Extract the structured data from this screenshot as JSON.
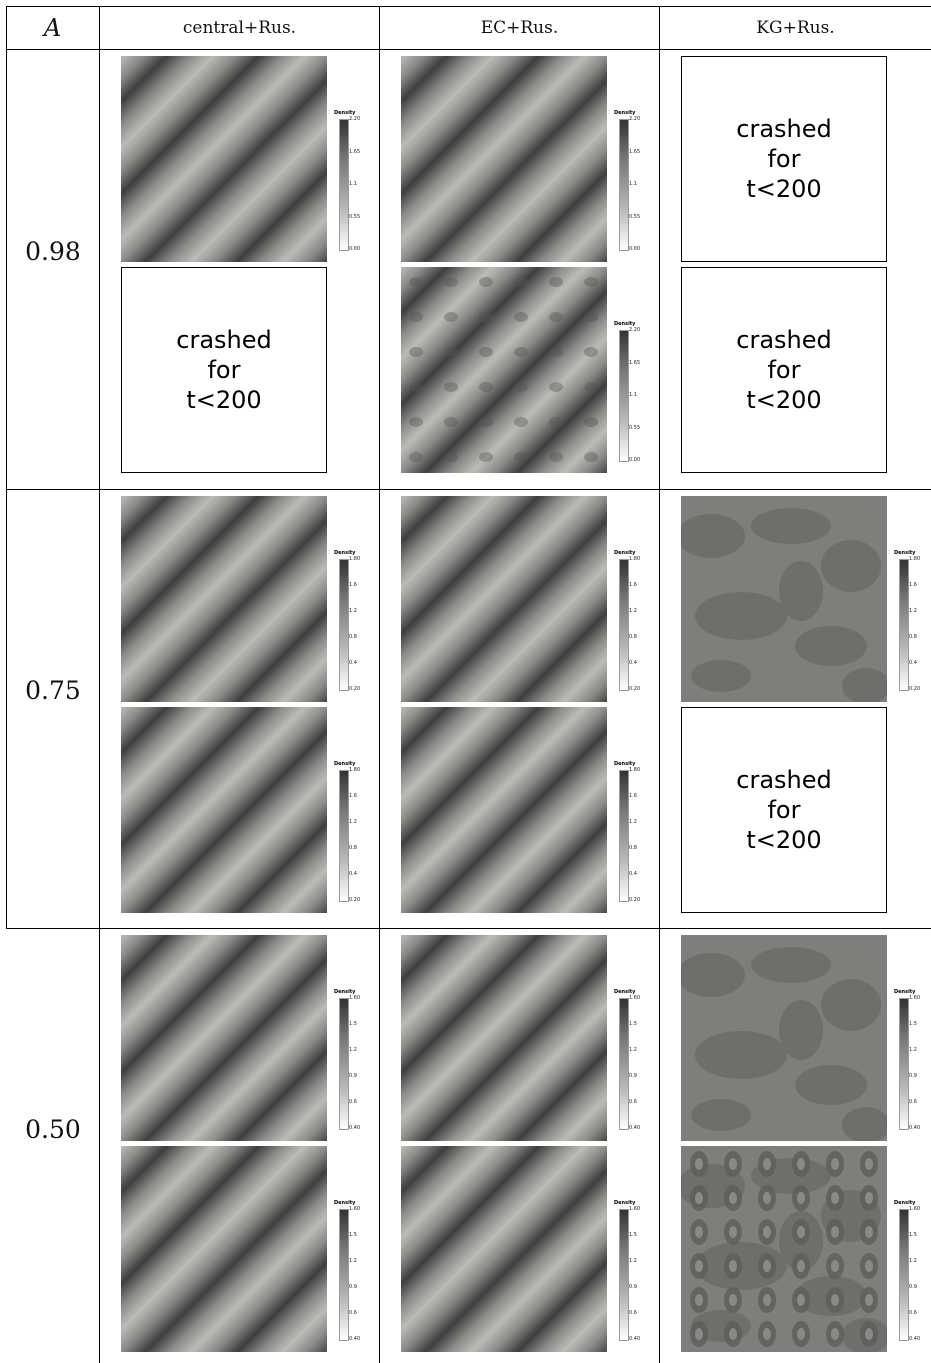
{
  "header": {
    "a": "A",
    "cols": [
      "central+Rus.",
      "EC+Rus.",
      "KG+Rus."
    ]
  },
  "crash_text": {
    "l1": "crashed",
    "l2": "for",
    "l3": "t<200"
  },
  "colorbar_title": "Density",
  "rows": [
    {
      "label": "0.98",
      "ticks": [
        "2.20",
        "1.65",
        "1.1",
        "0.55",
        "0.00"
      ],
      "panels": [
        [
          "stripe",
          "crash"
        ],
        [
          "stripe",
          "stripe-noisy"
        ],
        [
          "crash",
          "crash"
        ]
      ]
    },
    {
      "label": "0.75",
      "ticks": [
        "1.80",
        "1.6",
        "1.2",
        "0.8",
        "0.4",
        "0.20"
      ],
      "panels": [
        [
          "stripe",
          "stripe"
        ],
        [
          "stripe",
          "stripe"
        ],
        [
          "blob",
          "crash"
        ]
      ]
    },
    {
      "label": "0.50",
      "ticks": [
        "1.60",
        "1.5",
        "1.2",
        "0.9",
        "0.6",
        "0.40"
      ],
      "panels": [
        [
          "stripe",
          "stripe"
        ],
        [
          "stripe",
          "stripe"
        ],
        [
          "blob",
          "blob-noisy"
        ]
      ]
    }
  ]
}
